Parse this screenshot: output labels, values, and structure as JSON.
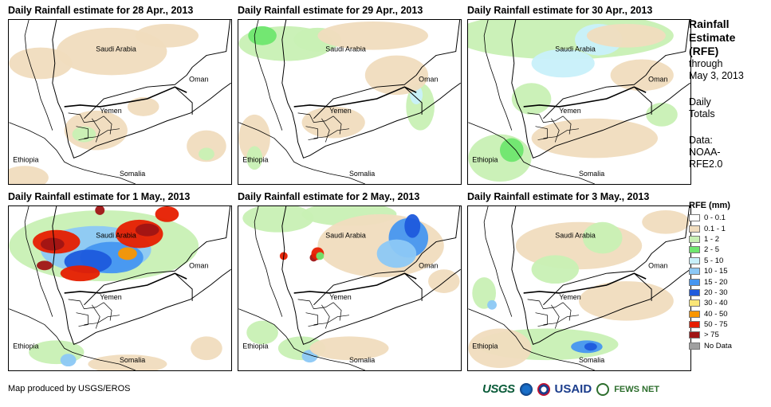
{
  "panels": [
    {
      "title": "Daily Rainfall estimate for 28 Apr., 2013"
    },
    {
      "title": "Daily Rainfall estimate for 29 Apr., 2013"
    },
    {
      "title": "Daily Rainfall estimate for 30 Apr., 2013"
    },
    {
      "title": "Daily Rainfall estimate for 1 May., 2013"
    },
    {
      "title": "Daily Rainfall estimate for 2 May., 2013"
    },
    {
      "title": "Daily Rainfall estimate for 3 May., 2013"
    }
  ],
  "countries": {
    "saudi": "Saudi Arabia",
    "oman": "Oman",
    "yemen": "Yemen",
    "ethiopia": "Ethiopia",
    "somalia": "Somalia"
  },
  "sidebar": {
    "title_line1": "Rainfall",
    "title_line2": "Estimate",
    "title_line3": "(RFE)",
    "through": "through",
    "date": "May 3, 2013",
    "daily": "Daily",
    "totals": "Totals",
    "data_label": "Data:",
    "data_src1": "NOAA-",
    "data_src2": "RFE2.0"
  },
  "legend": {
    "title": "RFE (mm)",
    "items": [
      {
        "label": "0 - 0.1",
        "color": "#ffffff"
      },
      {
        "label": "0.1 - 1",
        "color": "#f0dcbe"
      },
      {
        "label": "1 - 2",
        "color": "#c8f0b4"
      },
      {
        "label": "2 - 5",
        "color": "#6ee66e"
      },
      {
        "label": "5 - 10",
        "color": "#c8f0fa"
      },
      {
        "label": "10 - 15",
        "color": "#8cc8f5"
      },
      {
        "label": "15 - 20",
        "color": "#4696f0"
      },
      {
        "label": "20 - 30",
        "color": "#1e5adc"
      },
      {
        "label": "30 - 40",
        "color": "#fae678"
      },
      {
        "label": "40 - 50",
        "color": "#fa9600"
      },
      {
        "label": "50 - 75",
        "color": "#e61e00"
      },
      {
        "label": "> 75",
        "color": "#a01414"
      },
      {
        "label": "No Data",
        "color": "#a0a0a0"
      }
    ]
  },
  "footer": {
    "credit": "Map produced by USGS/EROS"
  },
  "logos": {
    "usgs": "USGS",
    "usaid": "USAID",
    "fews": "FEWS NET"
  }
}
